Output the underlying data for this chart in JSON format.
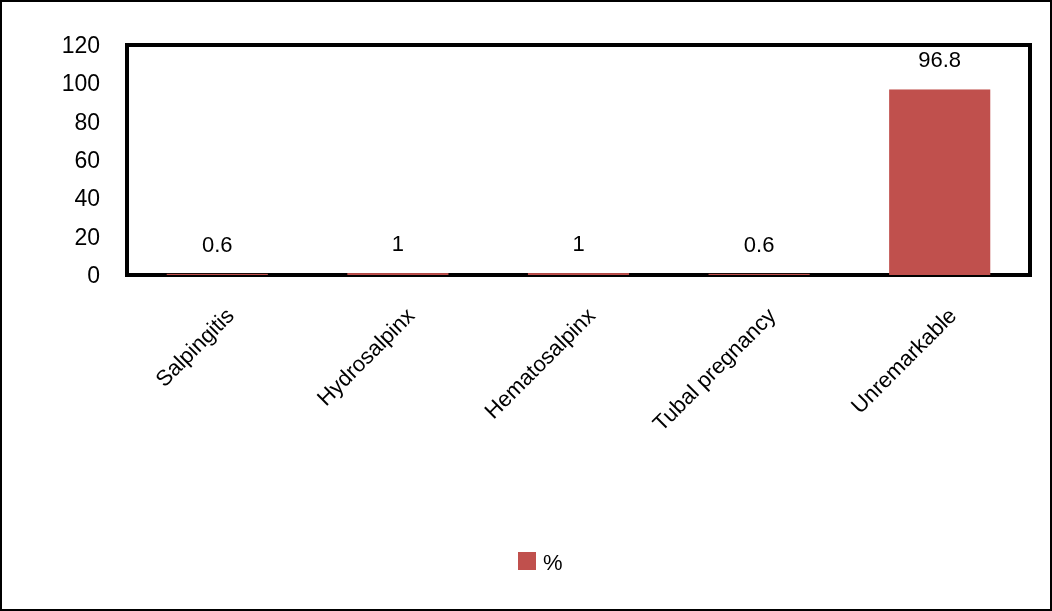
{
  "chart_data": {
    "type": "bar",
    "categories": [
      "Salpingitis",
      "Hydrosalpinx",
      "Hematosalpinx",
      "Tubal pregnancy",
      "Unremarkable"
    ],
    "series": [
      {
        "name": "%",
        "color": "#c0504d",
        "values": [
          0.6,
          1,
          1,
          0.6,
          96.8
        ]
      }
    ],
    "ylim": [
      0,
      120
    ],
    "yticks": [
      0,
      20,
      40,
      60,
      80,
      100,
      120
    ],
    "data_labels": true,
    "legend": "bottom",
    "grid": false
  }
}
